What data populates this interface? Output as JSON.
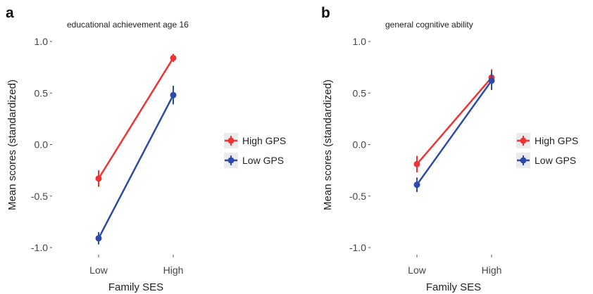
{
  "chart_data": [
    {
      "type": "line",
      "panel_letter": "a",
      "title": "educational achievement age 16",
      "xlabel": "Family SES",
      "ylabel": "Mean scores (standardized)",
      "categories": [
        "Low",
        "High"
      ],
      "ylim": [
        -1.1,
        1.1
      ],
      "yticks": [
        1.0,
        0.5,
        0.0,
        -0.5,
        -1.0
      ],
      "ytick_labels": [
        "1.0",
        "0.5",
        "0.0",
        "-0.5",
        "-1.0"
      ],
      "grid": false,
      "legend_position": "right",
      "series": [
        {
          "name": "High GPS",
          "color": "#ee3333",
          "values": [
            -0.33,
            0.84
          ],
          "err": [
            0.08,
            0.04
          ]
        },
        {
          "name": "Low GPS",
          "color": "#2e4aa8",
          "values": [
            -0.91,
            0.48
          ],
          "err": [
            0.06,
            0.09
          ]
        }
      ]
    },
    {
      "type": "line",
      "panel_letter": "b",
      "title": "general cognitive ability",
      "xlabel": "Family SES",
      "ylabel": "Mean scores (standardized)",
      "categories": [
        "Low",
        "High"
      ],
      "ylim": [
        -1.1,
        1.1
      ],
      "yticks": [
        1.0,
        0.5,
        0.0,
        -0.5,
        -1.0
      ],
      "ytick_labels": [
        "1.0",
        "0.5",
        "0.0",
        "-0.5",
        "-1.0"
      ],
      "grid": false,
      "legend_position": "right",
      "series": [
        {
          "name": "High GPS",
          "color": "#ee3333",
          "values": [
            -0.19,
            0.65
          ],
          "err": [
            0.08,
            0.08
          ]
        },
        {
          "name": "Low GPS",
          "color": "#2e4aa8",
          "values": [
            -0.39,
            0.62
          ],
          "err": [
            0.07,
            0.09
          ]
        }
      ]
    }
  ]
}
